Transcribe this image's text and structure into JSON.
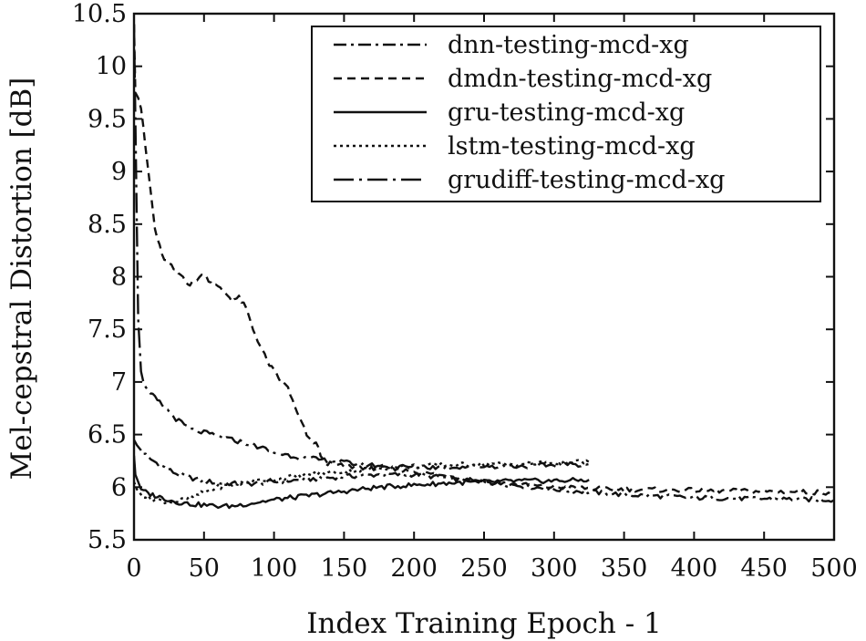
{
  "chart_data": {
    "type": "line",
    "title": "",
    "xlabel": "Index Training Epoch - 1",
    "ylabel": "Mel-cepstral Distortion [dB]",
    "xlim": [
      0,
      500
    ],
    "ylim": [
      5.5,
      10.5
    ],
    "xticks": [
      "0",
      "50",
      "100",
      "150",
      "200",
      "250",
      "300",
      "350",
      "400",
      "450",
      "500"
    ],
    "yticks": [
      "5.5",
      "6",
      "6.5",
      "7",
      "7.5",
      "8",
      "8.5",
      "9",
      "9.5",
      "10",
      "10.5"
    ],
    "grid": false,
    "legend_position": "top-right",
    "series": [
      {
        "name": "dnn-testing-mcd-xg",
        "dash": "dash-dot",
        "x": [
          0,
          2,
          5,
          10,
          20,
          30,
          40,
          50,
          60,
          80,
          100,
          130,
          150,
          175,
          200,
          250,
          300,
          350,
          400,
          450,
          500
        ],
        "y": [
          6.45,
          6.4,
          6.35,
          6.28,
          6.2,
          6.13,
          6.09,
          6.06,
          6.04,
          6.03,
          6.05,
          6.08,
          6.1,
          6.12,
          6.12,
          6.05,
          5.98,
          5.93,
          5.9,
          5.89,
          5.88
        ]
      },
      {
        "name": "dmdn-testing-mcd-xg",
        "dash": "dashed",
        "x": [
          0,
          1,
          3,
          5,
          8,
          12,
          15,
          20,
          25,
          30,
          35,
          40,
          45,
          50,
          55,
          60,
          65,
          70,
          75,
          80,
          85,
          90,
          95,
          100,
          105,
          110,
          115,
          120,
          125,
          130,
          135,
          140,
          150,
          175,
          200,
          250,
          300,
          350,
          400,
          450,
          500
        ],
        "y": [
          10.4,
          9.75,
          9.7,
          9.6,
          9.25,
          8.8,
          8.45,
          8.2,
          8.12,
          8.05,
          8.0,
          7.92,
          7.98,
          8.02,
          7.95,
          7.9,
          7.85,
          7.78,
          7.8,
          7.7,
          7.5,
          7.35,
          7.2,
          7.1,
          7.0,
          6.95,
          6.75,
          6.6,
          6.45,
          6.42,
          6.25,
          6.22,
          6.2,
          6.18,
          6.15,
          6.05,
          6.0,
          5.98,
          5.97,
          5.96,
          5.95
        ]
      },
      {
        "name": "gru-testing-mcd-xg",
        "dash": "solid",
        "x": [
          0,
          1,
          3,
          5,
          10,
          15,
          20,
          25,
          30,
          40,
          50,
          60,
          70,
          80,
          90,
          100,
          125,
          150,
          175,
          200,
          225,
          250,
          275,
          300,
          325
        ],
        "y": [
          6.3,
          6.12,
          6.05,
          5.98,
          5.94,
          5.92,
          5.9,
          5.88,
          5.86,
          5.84,
          5.83,
          5.82,
          5.82,
          5.84,
          5.86,
          5.88,
          5.92,
          5.96,
          6.0,
          6.02,
          6.04,
          6.05,
          6.06,
          6.06,
          6.07
        ]
      },
      {
        "name": "lstm-testing-mcd-xg",
        "dash": "dotted",
        "x": [
          0,
          2,
          5,
          10,
          15,
          20,
          30,
          40,
          50,
          60,
          80,
          100,
          125,
          150,
          175,
          200,
          225,
          250,
          275,
          300,
          325
        ],
        "y": [
          6.05,
          5.98,
          5.93,
          5.9,
          5.88,
          5.87,
          5.86,
          5.9,
          5.95,
          6.0,
          6.05,
          6.08,
          6.12,
          6.15,
          6.18,
          6.2,
          6.21,
          6.22,
          6.22,
          6.23,
          6.24
        ]
      },
      {
        "name": "grudiff-testing-mcd-xg",
        "dash": "long-dash-dot",
        "x": [
          0,
          1,
          2,
          3,
          5,
          8,
          10,
          15,
          20,
          30,
          40,
          50,
          60,
          70,
          80,
          90,
          100,
          120,
          140,
          160,
          180,
          200,
          225,
          250,
          275,
          300,
          325
        ],
        "y": [
          10.4,
          9.5,
          8.5,
          7.6,
          7.1,
          6.95,
          6.9,
          6.85,
          6.78,
          6.65,
          6.55,
          6.52,
          6.48,
          6.45,
          6.42,
          6.38,
          6.33,
          6.28,
          6.25,
          6.22,
          6.2,
          6.19,
          6.19,
          6.2,
          6.2,
          6.21,
          6.22
        ]
      }
    ]
  }
}
